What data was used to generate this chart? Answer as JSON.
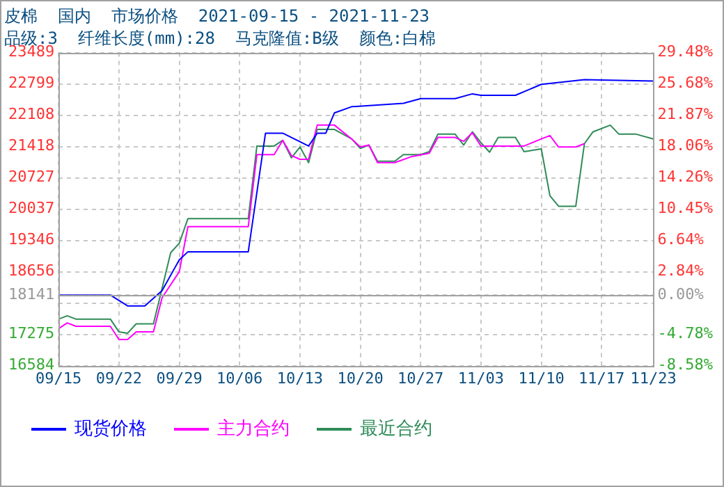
{
  "chart_data": {
    "type": "line",
    "title": "皮棉  国内  市场价格  2021-09-15 - 2021-11-23",
    "subtitle": "品级:3  纤维长度(mm):28  马克隆值:B级  颜色:白棉",
    "xlim": [
      "2021-09-15",
      "2021-11-23"
    ],
    "xticks": [
      {
        "value": "2021-09-15",
        "label": "09/15"
      },
      {
        "value": "2021-09-22",
        "label": "09/22"
      },
      {
        "value": "2021-09-29",
        "label": "09/29"
      },
      {
        "value": "2021-10-06",
        "label": "10/06"
      },
      {
        "value": "2021-10-13",
        "label": "10/13"
      },
      {
        "value": "2021-10-20",
        "label": "10/20"
      },
      {
        "value": "2021-10-27",
        "label": "10/27"
      },
      {
        "value": "2021-11-03",
        "label": "11/03"
      },
      {
        "value": "2021-11-10",
        "label": "11/10"
      },
      {
        "value": "2021-11-17",
        "label": "11/17"
      },
      {
        "value": "2021-11-23",
        "label": "11/23"
      }
    ],
    "ylim": [
      16584,
      23489
    ],
    "yticks": [
      16584,
      17275,
      {
        "value": 17965,
        "label": null
      },
      18141,
      18656,
      19346,
      20037,
      20727,
      21418,
      22108,
      22799,
      23489
    ],
    "y2lim": [
      -8.58,
      29.48
    ],
    "y2ticks": [
      {
        "value": -8.58,
        "label": "-8.58%"
      },
      {
        "value": -4.78,
        "label": "-4.78%"
      },
      {
        "value": -0.97,
        "label": null
      },
      {
        "value": 0,
        "label": "0.00%"
      },
      {
        "value": 2.84,
        "label": "2.84%"
      },
      {
        "value": 6.64,
        "label": "6.64%"
      },
      {
        "value": 10.45,
        "label": "10.45%"
      },
      {
        "value": 14.26,
        "label": "14.26%"
      },
      {
        "value": 18.06,
        "label": "18.06%"
      },
      {
        "value": 21.87,
        "label": "21.87%"
      },
      {
        "value": 25.68,
        "label": "25.68%"
      },
      {
        "value": 29.48,
        "label": "29.48%"
      }
    ],
    "ref_lines": [
      {
        "axis": "y",
        "value": 18141,
        "color": "#a0a0a0"
      }
    ],
    "grid": true,
    "legend": "bottom",
    "marker": "none",
    "line_style": "solid",
    "series": [
      {
        "name": "现货价格",
        "color": "#0000ff",
        "x": [
          "2021-09-15",
          "2021-09-21",
          "2021-09-23",
          "2021-09-25",
          "2021-09-27",
          "2021-09-29",
          "2021-09-30",
          "2021-10-07",
          "2021-10-09",
          "2021-10-11",
          "2021-10-14",
          "2021-10-15",
          "2021-10-16",
          "2021-10-17",
          "2021-10-19",
          "2021-10-25",
          "2021-10-27",
          "2021-10-31",
          "2021-11-02",
          "2021-11-03",
          "2021-11-07",
          "2021-11-10",
          "2021-11-15",
          "2021-11-23"
        ],
        "values": [
          18141,
          18141,
          17903,
          17903,
          18238,
          18918,
          19096,
          19096,
          21711,
          21711,
          21428,
          21711,
          21711,
          22160,
          22296,
          22370,
          22474,
          22474,
          22579,
          22547,
          22547,
          22788,
          22893,
          22861
        ]
      },
      {
        "name": "主力合约",
        "color": "#ff00ff",
        "x": [
          "2021-09-15",
          "2021-09-16",
          "2021-09-17",
          "2021-09-21",
          "2021-09-22",
          "2021-09-23",
          "2021-09-24",
          "2021-09-26",
          "2021-09-27",
          "2021-09-29",
          "2021-09-30",
          "2021-10-07",
          "2021-10-08",
          "2021-10-10",
          "2021-10-11",
          "2021-10-12",
          "2021-10-13",
          "2021-10-14",
          "2021-10-15",
          "2021-10-17",
          "2021-10-19",
          "2021-10-20",
          "2021-10-21",
          "2021-10-22",
          "2021-10-24",
          "2021-10-26",
          "2021-10-28",
          "2021-10-29",
          "2021-10-31",
          "2021-11-01",
          "2021-11-02",
          "2021-11-03",
          "2021-11-08",
          "2021-11-10",
          "2021-11-11",
          "2021-11-12",
          "2021-11-14",
          "2021-11-15"
        ],
        "values": [
          17401,
          17527,
          17453,
          17453,
          17160,
          17160,
          17328,
          17328,
          18081,
          18657,
          19650,
          19650,
          21240,
          21240,
          21554,
          21219,
          21135,
          21135,
          21889,
          21889,
          21585,
          21407,
          21449,
          21062,
          21062,
          21198,
          21271,
          21617,
          21617,
          21533,
          21721,
          21428,
          21428,
          21585,
          21658,
          21407,
          21407,
          21480
        ]
      },
      {
        "name": "最近合约",
        "color": "#2e8b57",
        "x": [
          "2021-09-15",
          "2021-09-16",
          "2021-09-17",
          "2021-09-21",
          "2021-09-22",
          "2021-09-23",
          "2021-09-24",
          "2021-09-26",
          "2021-09-27",
          "2021-09-28",
          "2021-09-29",
          "2021-09-30",
          "2021-10-07",
          "2021-10-08",
          "2021-10-10",
          "2021-10-11",
          "2021-10-12",
          "2021-10-13",
          "2021-10-14",
          "2021-10-15",
          "2021-10-17",
          "2021-10-19",
          "2021-10-20",
          "2021-10-21",
          "2021-10-22",
          "2021-10-24",
          "2021-10-25",
          "2021-10-27",
          "2021-10-28",
          "2021-10-29",
          "2021-10-31",
          "2021-11-01",
          "2021-11-02",
          "2021-11-03",
          "2021-11-04",
          "2021-11-05",
          "2021-11-07",
          "2021-11-08",
          "2021-11-10",
          "2021-11-11",
          "2021-11-12",
          "2021-11-14",
          "2021-11-15",
          "2021-11-16",
          "2021-11-18",
          "2021-11-19",
          "2021-11-21",
          "2021-11-23"
        ],
        "values": [
          17611,
          17684,
          17611,
          17611,
          17328,
          17300,
          17506,
          17506,
          18290,
          19075,
          19284,
          19828,
          19828,
          21428,
          21428,
          21554,
          21167,
          21407,
          21062,
          21794,
          21794,
          21585,
          21376,
          21449,
          21093,
          21093,
          21240,
          21240,
          21303,
          21690,
          21690,
          21449,
          21742,
          21500,
          21292,
          21617,
          21617,
          21303,
          21365,
          20330,
          20100,
          20100,
          21480,
          21742,
          21889,
          21690,
          21690,
          21585
        ]
      }
    ]
  }
}
